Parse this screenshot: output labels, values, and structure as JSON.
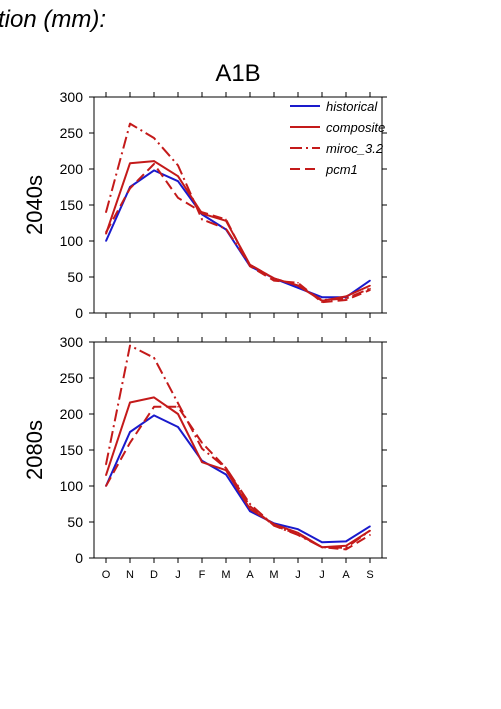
{
  "header": {
    "title_fragment": "tion (mm):"
  },
  "scenario_title": "A1B",
  "legend": [
    {
      "name": "historical",
      "color": "#1a1acc",
      "dash": "solid"
    },
    {
      "name": "composite",
      "color": "#c41a1a",
      "dash": "solid"
    },
    {
      "name": "miroc_3.2",
      "color": "#c41a1a",
      "dash": "dashdot"
    },
    {
      "name": "pcm1",
      "color": "#c41a1a",
      "dash": "dash"
    }
  ],
  "chart_data": [
    {
      "type": "line",
      "title": "A1B",
      "ylabel": "2040s",
      "xlabel": "",
      "categories": [
        "O",
        "N",
        "D",
        "J",
        "F",
        "M",
        "A",
        "M",
        "J",
        "J",
        "A",
        "S"
      ],
      "ylim": [
        0,
        300
      ],
      "yticks": [
        0,
        50,
        100,
        150,
        200,
        250,
        300
      ],
      "series": [
        {
          "name": "historical",
          "values": [
            100,
            175,
            198,
            183,
            137,
            116,
            65,
            48,
            35,
            22,
            22,
            45
          ]
        },
        {
          "name": "composite",
          "values": [
            110,
            208,
            211,
            190,
            138,
            128,
            67,
            48,
            38,
            17,
            23,
            38
          ]
        },
        {
          "name": "miroc_3.2",
          "values": [
            140,
            263,
            243,
            205,
            130,
            117,
            67,
            48,
            38,
            18,
            20,
            34
          ]
        },
        {
          "name": "pcm1",
          "values": [
            112,
            173,
            207,
            160,
            140,
            130,
            65,
            45,
            42,
            15,
            18,
            32
          ]
        }
      ]
    },
    {
      "type": "line",
      "title": "",
      "ylabel": "2080s",
      "xlabel": "",
      "categories": [
        "O",
        "N",
        "D",
        "J",
        "F",
        "M",
        "A",
        "M",
        "J",
        "J",
        "A",
        "S"
      ],
      "ylim": [
        0,
        300
      ],
      "yticks": [
        0,
        50,
        100,
        150,
        200,
        250,
        300
      ],
      "series": [
        {
          "name": "historical",
          "values": [
            100,
            175,
            198,
            182,
            135,
            116,
            65,
            48,
            40,
            22,
            23,
            44
          ]
        },
        {
          "name": "composite",
          "values": [
            115,
            216,
            223,
            200,
            133,
            122,
            68,
            47,
            35,
            15,
            17,
            38
          ]
        },
        {
          "name": "miroc_3.2",
          "values": [
            130,
            295,
            278,
            215,
            152,
            125,
            75,
            45,
            32,
            15,
            14,
            38
          ]
        },
        {
          "name": "pcm1",
          "values": [
            100,
            160,
            210,
            210,
            160,
            125,
            72,
            45,
            33,
            15,
            12,
            32
          ]
        }
      ]
    }
  ]
}
